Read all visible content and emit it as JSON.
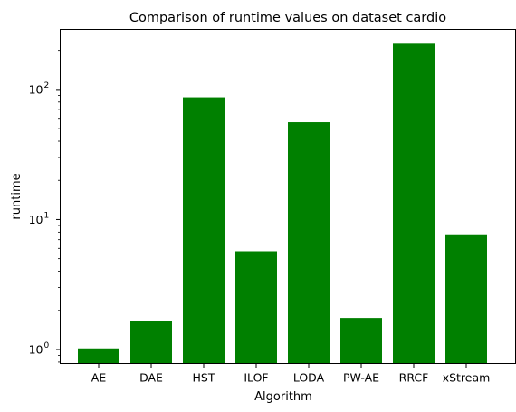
{
  "chart_data": {
    "type": "bar",
    "title": "Comparison of runtime values on dataset cardio",
    "xlabel": "Algorithm",
    "ylabel": "runtime",
    "yscale": "log",
    "ylim": [
      0.78,
      290
    ],
    "grid": false,
    "legend": "none",
    "categories": [
      "AE",
      "DAE",
      "HST",
      "ILOF",
      "LODA",
      "PW-AE",
      "RRCF",
      "xStream"
    ],
    "values": [
      1.02,
      1.65,
      87,
      5.7,
      56,
      1.75,
      225,
      7.7
    ],
    "bar_color": "#008000",
    "major_ticks": [
      {
        "value": 1,
        "base": "10",
        "exp": "0"
      },
      {
        "value": 10,
        "base": "10",
        "exp": "1"
      },
      {
        "value": 100,
        "base": "10",
        "exp": "2"
      }
    ]
  }
}
